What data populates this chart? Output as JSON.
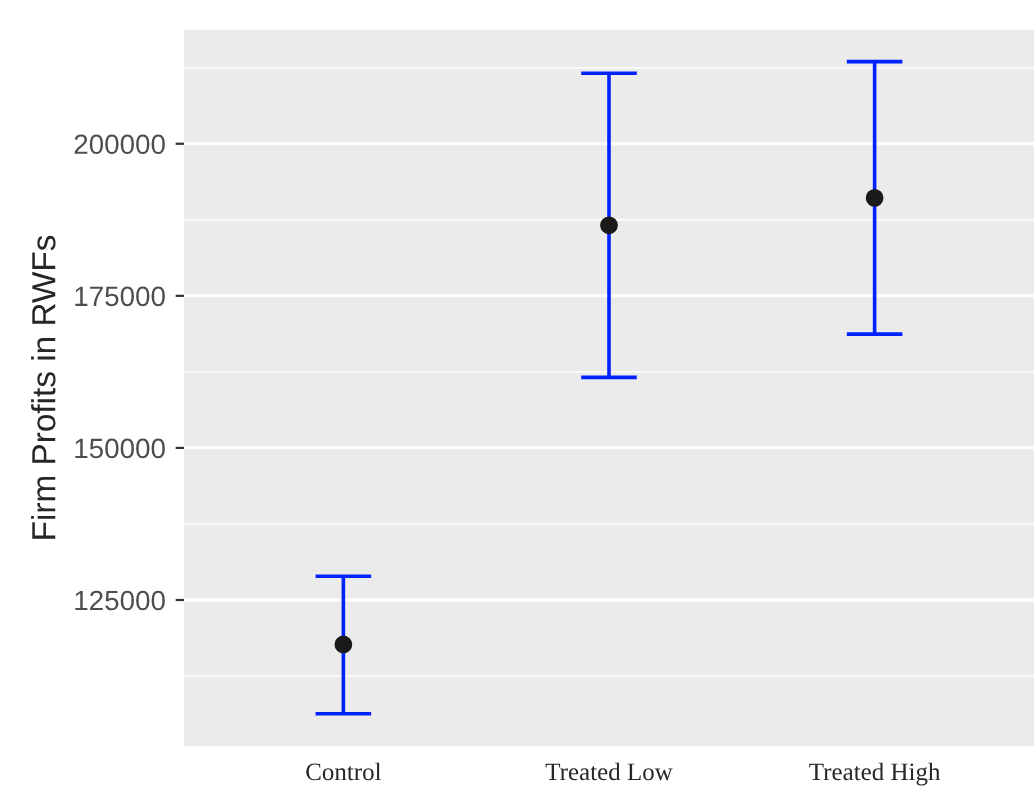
{
  "chart_data": {
    "type": "scatter",
    "ylabel": "Firm Profits in RWFs",
    "categories": [
      "Control",
      "Treated Low",
      "Treated High"
    ],
    "series": [
      {
        "color": "#1a1a1a",
        "values": [
          117700,
          186600,
          191100
        ],
        "errors": [
          [
            106300,
            128900
          ],
          [
            161600,
            211600
          ],
          [
            168700,
            213500
          ]
        ]
      }
    ],
    "ylim": [
      101000,
      218700
    ],
    "yticks": [
      125000,
      150000,
      175000,
      200000
    ],
    "grid": "y",
    "marker": "circle"
  }
}
